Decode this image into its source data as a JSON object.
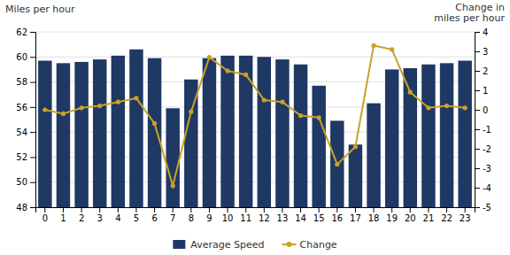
{
  "chart_data": {
    "type": "bar",
    "categories": [
      0,
      1,
      2,
      3,
      4,
      5,
      6,
      7,
      8,
      9,
      10,
      11,
      12,
      13,
      14,
      15,
      16,
      17,
      18,
      19,
      20,
      21,
      22,
      23
    ],
    "series": [
      {
        "name": "Average Speed",
        "type": "bar",
        "color": "#1F3864",
        "values": [
          59.7,
          59.5,
          59.6,
          59.8,
          60.1,
          60.6,
          59.9,
          55.9,
          58.2,
          59.9,
          60.1,
          60.1,
          60.0,
          59.8,
          59.4,
          57.7,
          54.9,
          53.0,
          56.3,
          59.0,
          59.1,
          59.4,
          59.5,
          59.7
        ]
      },
      {
        "name": "Change",
        "type": "line",
        "color": "#C9A227",
        "marker": "circle",
        "axis": "y2",
        "values": [
          0.0,
          -0.2,
          0.1,
          0.2,
          0.4,
          0.6,
          -0.7,
          -3.9,
          -0.1,
          2.7,
          2.0,
          1.8,
          0.5,
          0.4,
          -0.3,
          -0.4,
          -2.8,
          -1.9,
          3.3,
          3.1,
          0.9,
          0.1,
          0.2,
          0.1
        ]
      }
    ],
    "ylim": [
      48,
      62
    ],
    "yticks": [
      48,
      50,
      52,
      54,
      56,
      58,
      60,
      62
    ],
    "y2lim": [
      -5,
      4
    ],
    "y2ticks": [
      -5,
      -4,
      -3,
      -2,
      -1,
      0,
      1,
      2,
      3,
      4
    ],
    "ylabel": "Miles per hour",
    "y2label": "Change in\nmiles per hour",
    "grid": true,
    "legend": "bottom"
  }
}
